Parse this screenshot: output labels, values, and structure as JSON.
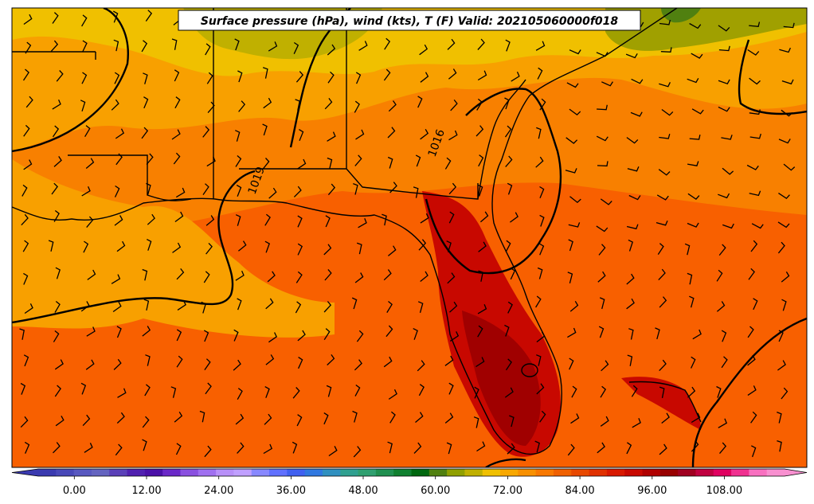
{
  "title": "Surface pressure (hPa), wind (kts), T (F) Valid: 202105060000f018",
  "colorbar": {
    "tick_labels": [
      "0.00",
      "12.00",
      "24.00",
      "36.00",
      "48.00",
      "60.00",
      "72.00",
      "84.00",
      "96.00",
      "108.00"
    ],
    "tick_values": [
      0,
      12,
      24,
      36,
      48,
      60,
      72,
      84,
      96,
      108
    ],
    "range": [
      -6,
      118
    ],
    "colors": [
      "#3a3ab0",
      "#4848b8",
      "#5858c0",
      "#6464c0",
      "#5a40b8",
      "#5020b0",
      "#4a10a8",
      "#6a28c8",
      "#8a50e0",
      "#a070f0",
      "#b890f8",
      "#c0a0ff",
      "#8888ff",
      "#6070ff",
      "#4060f0",
      "#3078e0",
      "#3090c0",
      "#30a090",
      "#30a070",
      "#209050",
      "#108030",
      "#006810",
      "#508010",
      "#90a000",
      "#c0b000",
      "#f0c000",
      "#f8a800",
      "#f89000",
      "#f87800",
      "#f06000",
      "#e84800",
      "#e03000",
      "#d81800",
      "#c80800",
      "#b00000",
      "#980000",
      "#a00020",
      "#c00040",
      "#e00060",
      "#f03090",
      "#f870c0",
      "#f890d0"
    ]
  },
  "contour_labels": [
    {
      "text": "1016"
    },
    {
      "text": "1019"
    }
  ],
  "colors": {
    "warm": "#f06000",
    "hot": "#c80800",
    "cool": "#f8a800",
    "border": "#000000"
  }
}
